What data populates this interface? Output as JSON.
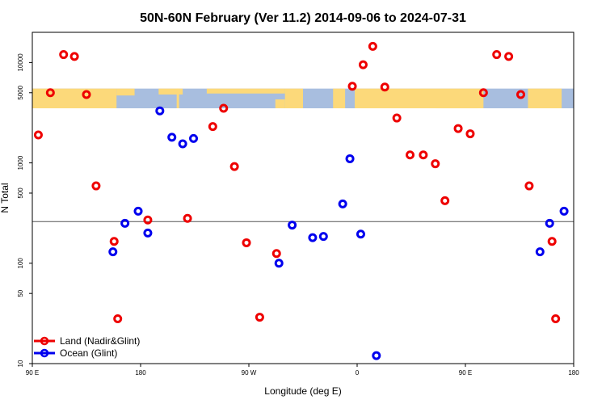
{
  "chart_data": {
    "type": "scatter",
    "title": "50N-60N February (Ver 11.2)   2014-09-06 to 2024-07-31",
    "xlabel": "Longitude (deg E)",
    "ylabel": "N Total",
    "xlim": [
      90,
      540
    ],
    "ylim_log": [
      10,
      20000
    ],
    "y_scale": "log",
    "x_ticks": [
      {
        "value": 90,
        "label": "90 E"
      },
      {
        "value": 180,
        "label": "180"
      },
      {
        "value": 270,
        "label": "90 W"
      },
      {
        "value": 360,
        "label": "0"
      },
      {
        "value": 450,
        "label": "90 E"
      },
      {
        "value": 540,
        "label": "180"
      }
    ],
    "y_ticks": [
      {
        "value": 10,
        "label": "10"
      },
      {
        "value": 50,
        "label": "50"
      },
      {
        "value": 100,
        "label": "100"
      },
      {
        "value": 500,
        "label": "500"
      },
      {
        "value": 1000,
        "label": "1000"
      },
      {
        "value": 5000,
        "label": "5000"
      },
      {
        "value": 10000,
        "label": "10000"
      }
    ],
    "map_band_y_range": [
      3500,
      5500
    ],
    "reference_line_y": 260,
    "legend_position": "bottom-left",
    "series": [
      {
        "name": "Land (Nadir&Glint)",
        "color": "#ee0000",
        "points": [
          [
            95,
            1900
          ],
          [
            105,
            5000
          ],
          [
            116,
            12000
          ],
          [
            125,
            11500
          ],
          [
            135,
            4800
          ],
          [
            143,
            590
          ],
          [
            158,
            165
          ],
          [
            161,
            28
          ],
          [
            186,
            270
          ],
          [
            219,
            280
          ],
          [
            240,
            2300
          ],
          [
            249,
            3500
          ],
          [
            258,
            920
          ],
          [
            268,
            160
          ],
          [
            279,
            29
          ],
          [
            293,
            125
          ],
          [
            356,
            5800
          ],
          [
            365,
            9500
          ],
          [
            373,
            14500
          ],
          [
            383,
            5700
          ],
          [
            393,
            2800
          ],
          [
            404,
            1200
          ],
          [
            415,
            1200
          ],
          [
            425,
            980
          ],
          [
            433,
            420
          ],
          [
            444,
            2200
          ],
          [
            454,
            1950
          ],
          [
            465,
            5000
          ],
          [
            476,
            12000
          ],
          [
            486,
            11500
          ],
          [
            496,
            4800
          ],
          [
            503,
            590
          ],
          [
            522,
            165
          ],
          [
            525,
            28
          ]
        ]
      },
      {
        "name": "Ocean (Glint)",
        "color": "#0000ee",
        "points": [
          [
            157,
            130
          ],
          [
            167,
            250
          ],
          [
            178,
            330
          ],
          [
            186,
            200
          ],
          [
            196,
            3300
          ],
          [
            206,
            1800
          ],
          [
            215,
            1550
          ],
          [
            224,
            1750
          ],
          [
            295,
            100
          ],
          [
            306,
            240
          ],
          [
            323,
            180
          ],
          [
            332,
            185
          ],
          [
            348,
            390
          ],
          [
            354,
            1100
          ],
          [
            363,
            195
          ],
          [
            376,
            12
          ],
          [
            512,
            130
          ],
          [
            520,
            250
          ],
          [
            532,
            330
          ]
        ]
      }
    ]
  }
}
